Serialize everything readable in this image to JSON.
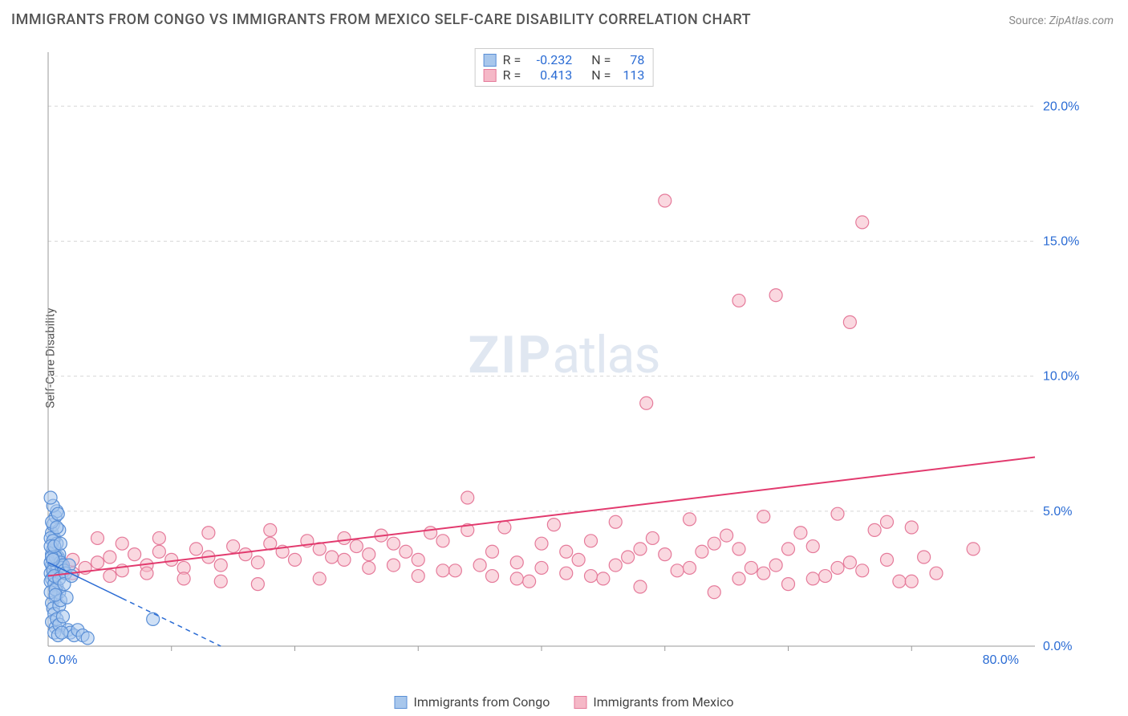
{
  "title": "IMMIGRANTS FROM CONGO VS IMMIGRANTS FROM MEXICO SELF-CARE DISABILITY CORRELATION CHART",
  "source_label": "Source:",
  "source_value": "ZipAtlas.com",
  "watermark": {
    "zip": "ZIP",
    "atlas": "atlas"
  },
  "y_axis_label": "Self-Care Disability",
  "chart": {
    "type": "scatter",
    "xlim": [
      0,
      80
    ],
    "ylim": [
      0,
      22
    ],
    "y_ticks": [
      0.0,
      5.0,
      10.0,
      15.0,
      20.0
    ],
    "y_tick_labels": [
      "0.0%",
      "5.0%",
      "10.0%",
      "15.0%",
      "20.0%"
    ],
    "x_tick_0": "0.0%",
    "x_tick_end": "80.0%",
    "grid_color": "#d8d8d8",
    "axis_color": "#999999",
    "background_color": "#ffffff",
    "marker_radius": 8,
    "marker_stroke_width": 1.2,
    "series": [
      {
        "name": "Immigrants from Congo",
        "color_fill": "#a8c7ec",
        "color_stroke": "#5a8fd6",
        "fill_opacity": 0.55,
        "R": "-0.232",
        "N": "78",
        "trend": {
          "x1": 0,
          "y1": 3.1,
          "x2": 14,
          "y2": 0,
          "dashed_after_x": 6,
          "color": "#2b6cd4",
          "width": 1.5
        },
        "points": [
          [
            0.3,
            3.0
          ],
          [
            0.5,
            3.2
          ],
          [
            0.4,
            2.9
          ],
          [
            0.6,
            3.1
          ],
          [
            0.2,
            2.7
          ],
          [
            0.8,
            3.3
          ],
          [
            0.5,
            3.0
          ],
          [
            0.7,
            2.8
          ],
          [
            0.3,
            3.4
          ],
          [
            0.9,
            3.2
          ],
          [
            0.4,
            3.6
          ],
          [
            0.6,
            2.6
          ],
          [
            0.2,
            3.1
          ],
          [
            0.8,
            2.9
          ],
          [
            0.5,
            3.5
          ],
          [
            0.7,
            3.0
          ],
          [
            0.3,
            2.5
          ],
          [
            0.9,
            3.4
          ],
          [
            0.4,
            2.8
          ],
          [
            0.6,
            3.3
          ],
          [
            0.2,
            2.4
          ],
          [
            1.0,
            3.1
          ],
          [
            0.5,
            4.0
          ],
          [
            0.7,
            2.2
          ],
          [
            0.3,
            4.2
          ],
          [
            0.9,
            2.0
          ],
          [
            0.4,
            4.5
          ],
          [
            0.6,
            1.8
          ],
          [
            0.2,
            4.0
          ],
          [
            1.1,
            2.9
          ],
          [
            0.5,
            2.3
          ],
          [
            0.7,
            3.8
          ],
          [
            0.3,
            1.6
          ],
          [
            0.9,
            4.3
          ],
          [
            0.4,
            1.4
          ],
          [
            0.6,
            4.8
          ],
          [
            0.2,
            2.0
          ],
          [
            1.2,
            3.0
          ],
          [
            0.5,
            1.2
          ],
          [
            0.7,
            5.0
          ],
          [
            0.3,
            0.9
          ],
          [
            0.9,
            1.5
          ],
          [
            0.4,
            5.2
          ],
          [
            0.6,
            0.7
          ],
          [
            0.2,
            5.5
          ],
          [
            1.3,
            2.8
          ],
          [
            0.5,
            0.5
          ],
          [
            0.7,
            1.0
          ],
          [
            0.3,
            4.6
          ],
          [
            0.9,
            0.8
          ],
          [
            0.4,
            3.9
          ],
          [
            0.6,
            2.1
          ],
          [
            0.2,
            3.7
          ],
          [
            1.0,
            1.7
          ],
          [
            0.5,
            2.6
          ],
          [
            0.7,
            4.4
          ],
          [
            0.3,
            3.3
          ],
          [
            0.9,
            2.5
          ],
          [
            0.4,
            3.2
          ],
          [
            0.6,
            1.9
          ],
          [
            0.8,
            0.4
          ],
          [
            1.4,
            2.7
          ],
          [
            0.5,
            3.7
          ],
          [
            1.6,
            0.6
          ],
          [
            1.8,
            0.5
          ],
          [
            2.1,
            0.4
          ],
          [
            1.2,
            1.1
          ],
          [
            1.5,
            1.8
          ],
          [
            1.1,
            0.5
          ],
          [
            2.4,
            0.6
          ],
          [
            0.8,
            4.9
          ],
          [
            1.0,
            3.8
          ],
          [
            1.3,
            2.3
          ],
          [
            1.7,
            3.0
          ],
          [
            1.9,
            2.6
          ],
          [
            2.8,
            0.4
          ],
          [
            3.2,
            0.3
          ],
          [
            8.5,
            1.0
          ]
        ]
      },
      {
        "name": "Immigrants from Mexico",
        "color_fill": "#f5b8c7",
        "color_stroke": "#e57a9a",
        "fill_opacity": 0.55,
        "R": "0.413",
        "N": "113",
        "trend": {
          "x1": 0,
          "y1": 2.6,
          "x2": 80,
          "y2": 7.0,
          "color": "#e23a6e",
          "width": 2
        },
        "points": [
          [
            1,
            3.0
          ],
          [
            2,
            3.2
          ],
          [
            3,
            2.9
          ],
          [
            4,
            3.1
          ],
          [
            5,
            3.3
          ],
          [
            6,
            2.8
          ],
          [
            7,
            3.4
          ],
          [
            8,
            3.0
          ],
          [
            9,
            3.5
          ],
          [
            10,
            3.2
          ],
          [
            11,
            2.9
          ],
          [
            12,
            3.6
          ],
          [
            13,
            3.3
          ],
          [
            14,
            3.0
          ],
          [
            15,
            3.7
          ],
          [
            16,
            3.4
          ],
          [
            17,
            3.1
          ],
          [
            18,
            3.8
          ],
          [
            19,
            3.5
          ],
          [
            20,
            3.2
          ],
          [
            21,
            3.9
          ],
          [
            22,
            3.6
          ],
          [
            23,
            3.3
          ],
          [
            24,
            4.0
          ],
          [
            25,
            3.7
          ],
          [
            26,
            3.4
          ],
          [
            27,
            4.1
          ],
          [
            28,
            3.8
          ],
          [
            29,
            3.5
          ],
          [
            30,
            3.2
          ],
          [
            31,
            4.2
          ],
          [
            32,
            3.9
          ],
          [
            33,
            2.8
          ],
          [
            34,
            4.3
          ],
          [
            35,
            3.0
          ],
          [
            36,
            2.6
          ],
          [
            37,
            4.4
          ],
          [
            38,
            3.1
          ],
          [
            39,
            2.4
          ],
          [
            40,
            3.8
          ],
          [
            41,
            4.5
          ],
          [
            42,
            2.7
          ],
          [
            43,
            3.2
          ],
          [
            44,
            3.9
          ],
          [
            45,
            2.5
          ],
          [
            46,
            4.6
          ],
          [
            47,
            3.3
          ],
          [
            48,
            2.2
          ],
          [
            49,
            4.0
          ],
          [
            50,
            3.4
          ],
          [
            51,
            2.8
          ],
          [
            52,
            4.7
          ],
          [
            53,
            3.5
          ],
          [
            54,
            2.0
          ],
          [
            55,
            4.1
          ],
          [
            56,
            3.6
          ],
          [
            57,
            2.9
          ],
          [
            58,
            4.8
          ],
          [
            59,
            3.0
          ],
          [
            60,
            2.3
          ],
          [
            61,
            4.2
          ],
          [
            62,
            3.7
          ],
          [
            63,
            2.6
          ],
          [
            64,
            4.9
          ],
          [
            65,
            3.1
          ],
          [
            66,
            2.8
          ],
          [
            67,
            4.3
          ],
          [
            68,
            3.2
          ],
          [
            69,
            2.4
          ],
          [
            70,
            4.4
          ],
          [
            71,
            3.3
          ],
          [
            72,
            2.7
          ],
          [
            48.5,
            9.0
          ],
          [
            50,
            16.5
          ],
          [
            56,
            12.8
          ],
          [
            59,
            13.0
          ],
          [
            65,
            12.0
          ],
          [
            66,
            15.7
          ],
          [
            75,
            3.6
          ],
          [
            34,
            5.5
          ],
          [
            11,
            2.5
          ],
          [
            14,
            2.4
          ],
          [
            17,
            2.3
          ],
          [
            5,
            2.6
          ],
          [
            8,
            2.7
          ],
          [
            22,
            2.5
          ],
          [
            26,
            2.9
          ],
          [
            30,
            2.6
          ],
          [
            38,
            2.5
          ],
          [
            42,
            3.5
          ],
          [
            46,
            3.0
          ],
          [
            6,
            3.8
          ],
          [
            9,
            4.0
          ],
          [
            13,
            4.2
          ],
          [
            18,
            4.3
          ],
          [
            24,
            3.2
          ],
          [
            28,
            3.0
          ],
          [
            32,
            2.8
          ],
          [
            36,
            3.5
          ],
          [
            40,
            2.9
          ],
          [
            44,
            2.6
          ],
          [
            52,
            2.9
          ],
          [
            56,
            2.5
          ],
          [
            60,
            3.6
          ],
          [
            64,
            2.9
          ],
          [
            68,
            4.6
          ],
          [
            48,
            3.6
          ],
          [
            54,
            3.8
          ],
          [
            58,
            2.7
          ],
          [
            62,
            2.5
          ],
          [
            70,
            2.4
          ],
          [
            2,
            2.7
          ],
          [
            4,
            4.0
          ]
        ]
      }
    ]
  },
  "stats_labels": {
    "R": "R =",
    "N": "N ="
  },
  "legend": {
    "series1_label": "Immigrants from Congo",
    "series2_label": "Immigrants from Mexico"
  }
}
